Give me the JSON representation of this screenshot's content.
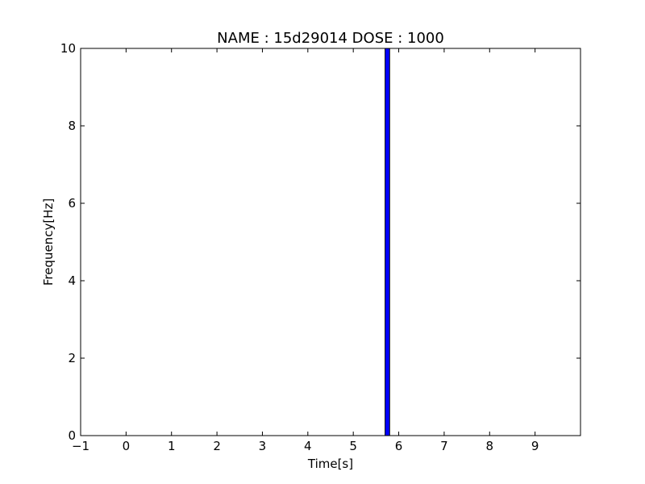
{
  "chart_data": {
    "type": "bar",
    "title": "NAME : 15d29014 DOSE : 1000",
    "xlabel": "Time[s]",
    "ylabel": "Frequency[Hz]",
    "xlim": [
      -1,
      10
    ],
    "ylim": [
      0,
      10
    ],
    "xticks": [
      -1,
      0,
      1,
      2,
      3,
      4,
      5,
      6,
      7,
      8,
      9
    ],
    "xtick_labels": [
      "−1",
      "0",
      "1",
      "2",
      "3",
      "4",
      "5",
      "6",
      "7",
      "8",
      "9"
    ],
    "yticks": [
      0,
      2,
      4,
      6,
      8,
      10
    ],
    "ytick_labels": [
      "0",
      "2",
      "4",
      "6",
      "8",
      "10"
    ],
    "grid": false,
    "bars": [
      {
        "x_start": 5.7,
        "x_end": 5.8,
        "value": 10
      }
    ],
    "colors": {
      "bar_fill": "#0000ff",
      "bar_edge": "#000000",
      "axes": "#000000"
    }
  }
}
